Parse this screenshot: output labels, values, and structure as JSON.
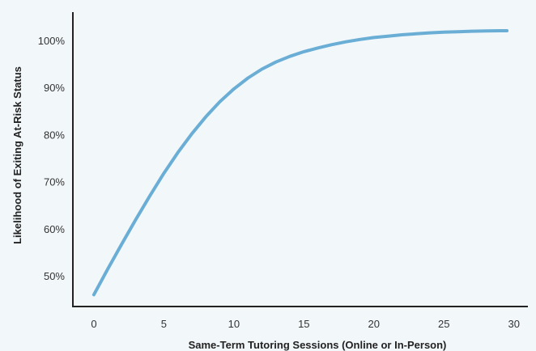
{
  "chart_data": {
    "type": "line",
    "title": "",
    "xlabel": "Same-Term Tutoring Sessions (Online or In-Person)",
    "ylabel": "Likelihood of Exiting At-Risk Status",
    "xlim": [
      -1.5,
      31
    ],
    "ylim": [
      43.5,
      106
    ],
    "x_ticks": [
      0,
      5,
      10,
      15,
      20,
      25,
      30
    ],
    "x_tick_labels": [
      "0",
      "5",
      "10",
      "15",
      "20",
      "25",
      "30"
    ],
    "y_ticks": [
      50,
      60,
      70,
      80,
      90,
      100
    ],
    "y_tick_labels": [
      "50%",
      "60%",
      "70%",
      "80%",
      "90%",
      "100%"
    ],
    "grid": false,
    "legend": "none",
    "series": [
      {
        "color": "#6aaed6",
        "x": [
          0,
          1,
          2,
          3,
          4,
          5,
          6,
          7,
          8,
          9,
          10,
          11,
          12,
          13,
          14,
          15,
          16,
          17,
          18,
          19,
          20,
          21,
          22,
          23,
          24,
          25,
          26,
          27,
          28,
          29,
          29.5
        ],
        "y": [
          46,
          51.5,
          56.8,
          62,
          67,
          71.8,
          76.2,
          80.2,
          83.8,
          87,
          89.7,
          92,
          93.9,
          95.4,
          96.6,
          97.6,
          98.4,
          99.1,
          99.7,
          100.2,
          100.6,
          100.9,
          101.2,
          101.4,
          101.6,
          101.75,
          101.85,
          101.95,
          102.0,
          102.05,
          102.05
        ]
      }
    ]
  }
}
